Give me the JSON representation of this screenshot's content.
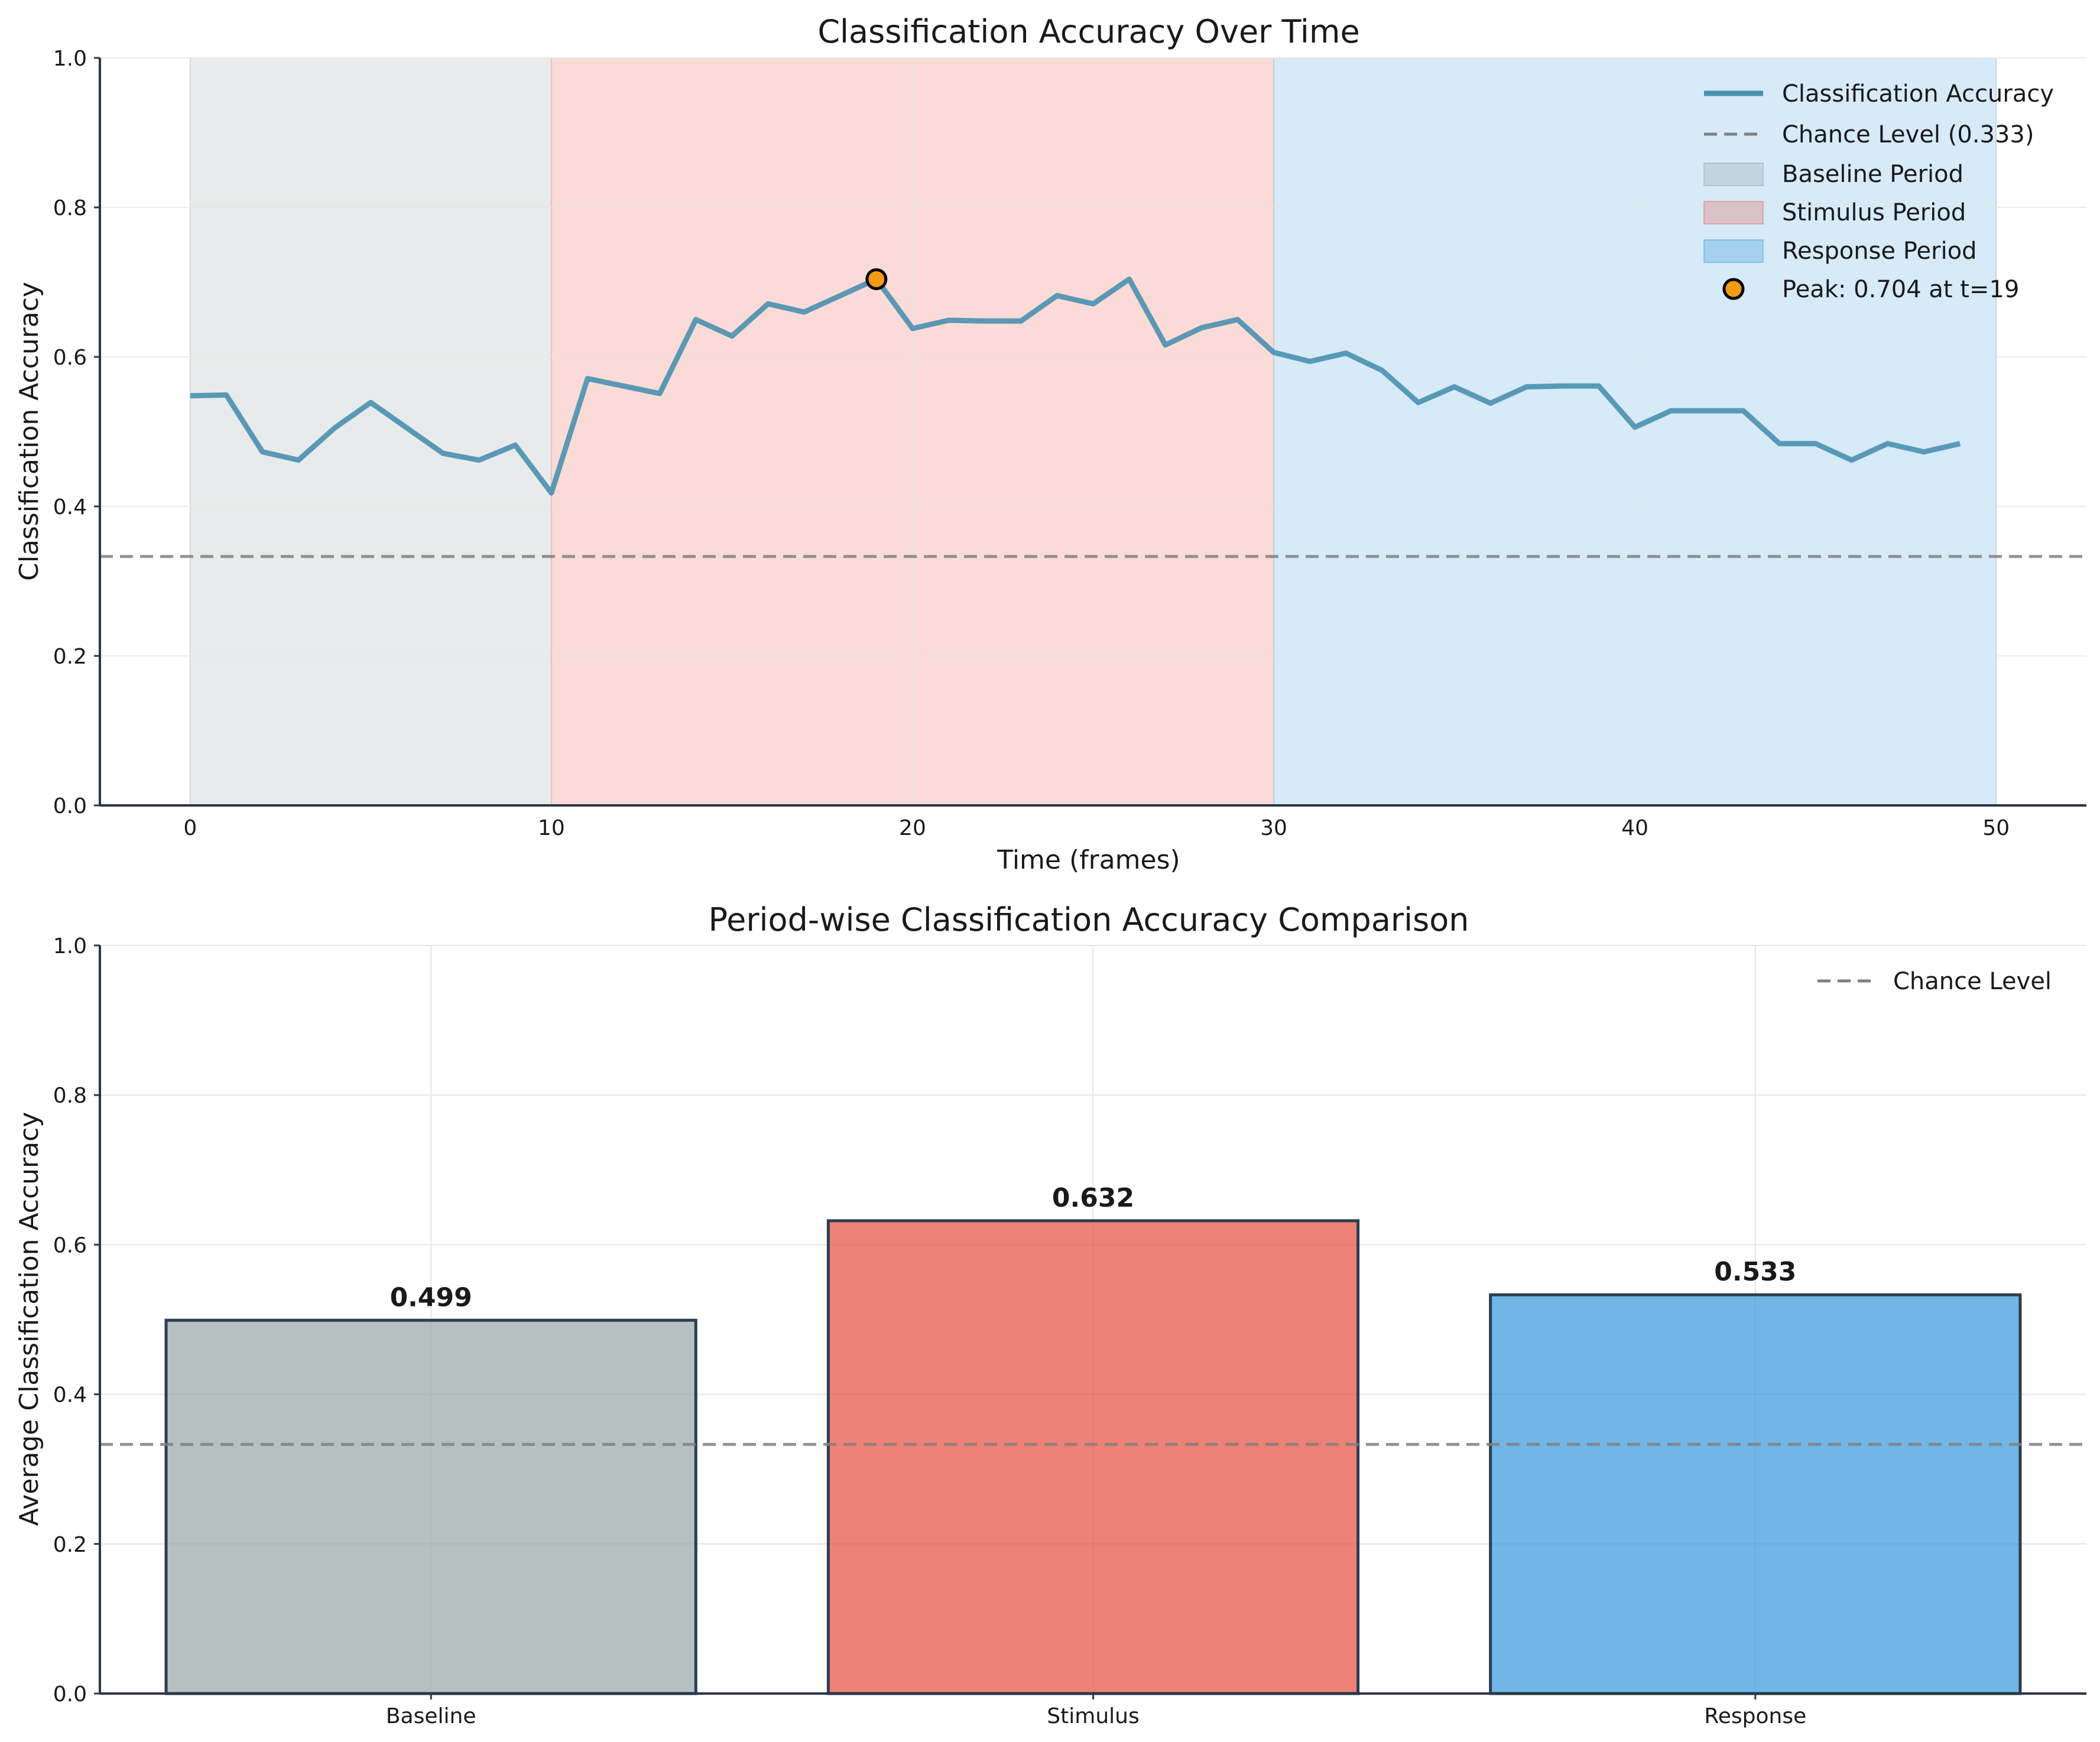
{
  "chart_data": [
    {
      "type": "line",
      "title": "Classification Accuracy Over Time",
      "xlabel": "Time (frames)",
      "ylabel": "Classification Accuracy",
      "xlim": [
        -2.5,
        52.5
      ],
      "ylim": [
        0.0,
        1.0
      ],
      "xticks": [
        "0",
        "10",
        "20",
        "30",
        "40",
        "50"
      ],
      "yticks": [
        "0.0",
        "0.2",
        "0.4",
        "0.6",
        "0.8",
        "1.0"
      ],
      "grid": true,
      "legend_position": "top-right",
      "chance_level": 0.333,
      "periods": [
        {
          "name": "Baseline Period",
          "start": 0,
          "end": 10,
          "color": "#95a5a6"
        },
        {
          "name": "Stimulus Period",
          "start": 10,
          "end": 30,
          "color": "#e74c3c"
        },
        {
          "name": "Response Period",
          "start": 30,
          "end": 50,
          "color": "#3498db"
        }
      ],
      "series": [
        {
          "name": "Classification Accuracy",
          "color": "#4a90b0",
          "x": [
            0,
            1,
            2,
            3,
            4,
            5,
            6,
            7,
            8,
            9,
            10,
            11,
            12,
            13,
            14,
            15,
            16,
            17,
            18,
            19,
            20,
            21,
            22,
            23,
            24,
            25,
            26,
            27,
            28,
            29,
            30,
            31,
            32,
            33,
            34,
            35,
            36,
            37,
            38,
            39,
            40,
            41,
            42,
            43,
            44,
            45,
            46,
            47,
            48,
            49
          ],
          "y": [
            0.548,
            0.549,
            0.473,
            0.462,
            0.505,
            0.539,
            0.505,
            0.471,
            0.462,
            0.482,
            0.418,
            0.571,
            0.561,
            0.551,
            0.65,
            0.628,
            0.671,
            0.66,
            0.682,
            0.704,
            0.638,
            0.649,
            0.648,
            0.648,
            0.682,
            0.671,
            0.704,
            0.616,
            0.639,
            0.65,
            0.606,
            0.594,
            0.605,
            0.582,
            0.539,
            0.56,
            0.538,
            0.56,
            0.561,
            0.561,
            0.506,
            0.528,
            0.528,
            0.528,
            0.484,
            0.484,
            0.462,
            0.484,
            0.473,
            0.484
          ]
        }
      ],
      "peak": {
        "x": 19,
        "y": 0.704,
        "color": "#f39c12"
      },
      "legend": [
        "Classification Accuracy",
        "Chance Level (0.333)",
        "Baseline Period",
        "Stimulus Period",
        "Response Period",
        "Peak: 0.704 at t=19"
      ]
    },
    {
      "type": "bar",
      "title": "Period-wise Classification Accuracy Comparison",
      "xlabel": "",
      "ylabel": "Average Classification Accuracy",
      "ylim": [
        0.0,
        1.0
      ],
      "yticks": [
        "0.0",
        "0.2",
        "0.4",
        "0.6",
        "0.8",
        "1.0"
      ],
      "grid": true,
      "legend_position": "top-right",
      "chance_level": 0.333,
      "categories": [
        "Baseline",
        "Stimulus",
        "Response"
      ],
      "values": [
        0.499,
        0.632,
        0.533
      ],
      "value_labels": [
        "0.499",
        "0.632",
        "0.533"
      ],
      "colors": [
        "#95a5a6",
        "#e74c3c",
        "#3498db"
      ],
      "legend": [
        "Chance Level"
      ]
    }
  ]
}
